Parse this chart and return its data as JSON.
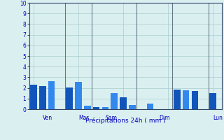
{
  "title": "Précipitations 24h ( mm )",
  "bars": [
    {
      "x": 0,
      "height": 2.3,
      "color": "#1155bb"
    },
    {
      "x": 1,
      "height": 2.2,
      "color": "#1155bb"
    },
    {
      "x": 2,
      "height": 2.65,
      "color": "#3388ee"
    },
    {
      "x": 4,
      "height": 2.05,
      "color": "#1155bb"
    },
    {
      "x": 5,
      "height": 2.55,
      "color": "#3388ee"
    },
    {
      "x": 6,
      "height": 0.3,
      "color": "#3388ee"
    },
    {
      "x": 7,
      "height": 0.18,
      "color": "#1155bb"
    },
    {
      "x": 8,
      "height": 0.22,
      "color": "#3388ee"
    },
    {
      "x": 9,
      "height": 1.5,
      "color": "#3388ee"
    },
    {
      "x": 10,
      "height": 1.15,
      "color": "#1155bb"
    },
    {
      "x": 11,
      "height": 0.42,
      "color": "#3388ee"
    },
    {
      "x": 13,
      "height": 0.5,
      "color": "#3388ee"
    },
    {
      "x": 16,
      "height": 1.85,
      "color": "#1155bb"
    },
    {
      "x": 17,
      "height": 1.75,
      "color": "#3388ee"
    },
    {
      "x": 18,
      "height": 1.7,
      "color": "#1155bb"
    },
    {
      "x": 20,
      "height": 1.5,
      "color": "#1155bb"
    }
  ],
  "day_labels": [
    {
      "label": "Ven",
      "x_bar": 1
    },
    {
      "label": "Mar",
      "x_bar": 5
    },
    {
      "label": "Sam",
      "x_bar": 8
    },
    {
      "label": "Dim",
      "x_bar": 14
    },
    {
      "label": "Lun",
      "x_bar": 20
    }
  ],
  "day_vlines_x": [
    3.5,
    6.5,
    11.5,
    15.5,
    19.5
  ],
  "ylim": [
    0,
    10
  ],
  "yticks": [
    0,
    1,
    2,
    3,
    4,
    5,
    6,
    7,
    8,
    9,
    10
  ],
  "xlim": [
    -0.5,
    21.0
  ],
  "bar_width": 0.75,
  "bg_color": "#daf0f0",
  "grid_color": "#aacccc",
  "vline_color": "#667788",
  "axis_color": "#334466",
  "label_color": "#0000bb",
  "tick_label_color": "#0000bb"
}
